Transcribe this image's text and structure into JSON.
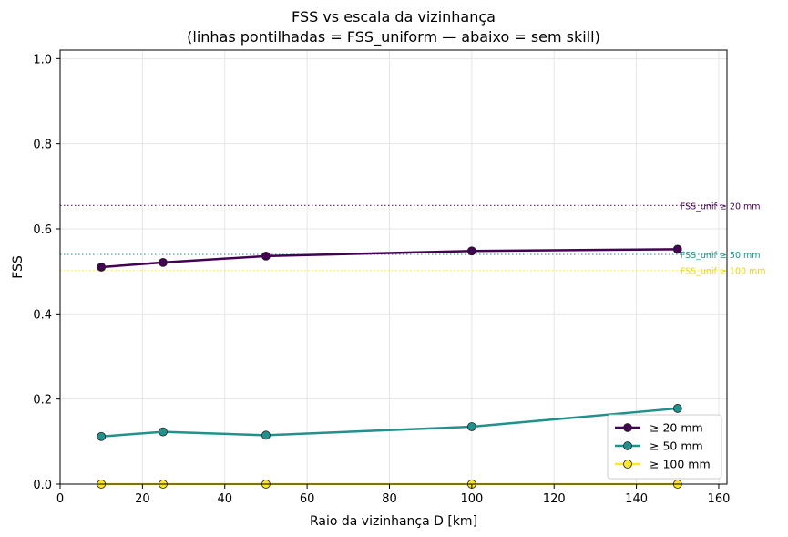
{
  "chart_data": {
    "type": "line",
    "title": "FSS vs escala da vizinhança",
    "subtitle": "(linhas pontilhadas = FSS_uniform — abaixo = sem skill)",
    "xlabel": "Raio da vizinhança D [km]",
    "ylabel": "FSS",
    "xlim": [
      0,
      162
    ],
    "ylim": [
      0,
      1.02
    ],
    "xticks": [
      0,
      20,
      40,
      60,
      80,
      100,
      120,
      140,
      160
    ],
    "yticks": [
      0.0,
      0.2,
      0.4,
      0.6,
      0.8,
      1.0
    ],
    "ytick_labels": [
      "0.0",
      "0.2",
      "0.4",
      "0.6",
      "0.8",
      "1.0"
    ],
    "grid": true,
    "legend_position": "lower-right",
    "x": [
      10,
      25,
      50,
      100,
      150
    ],
    "series": [
      {
        "name": "≥ 20 mm",
        "color": "#440154",
        "values": [
          0.51,
          0.521,
          0.536,
          0.548,
          0.552
        ]
      },
      {
        "name": "≥ 50 mm",
        "color": "#21918c",
        "values": [
          0.112,
          0.123,
          0.115,
          0.135,
          0.178
        ]
      },
      {
        "name": "≥ 100 mm",
        "color": "#fde725",
        "values": [
          0.0,
          0.0,
          0.0,
          0.0,
          0.0
        ]
      }
    ],
    "reference_lines": [
      {
        "label": "FSS_unif ≥ 20 mm",
        "value": 0.655,
        "color": "#440154"
      },
      {
        "label": "FSS_unif ≥ 50 mm",
        "value": 0.54,
        "color": "#21918c"
      },
      {
        "label": "FSS_unif ≥ 100 mm",
        "value": 0.502,
        "color": "#fde725"
      }
    ]
  }
}
